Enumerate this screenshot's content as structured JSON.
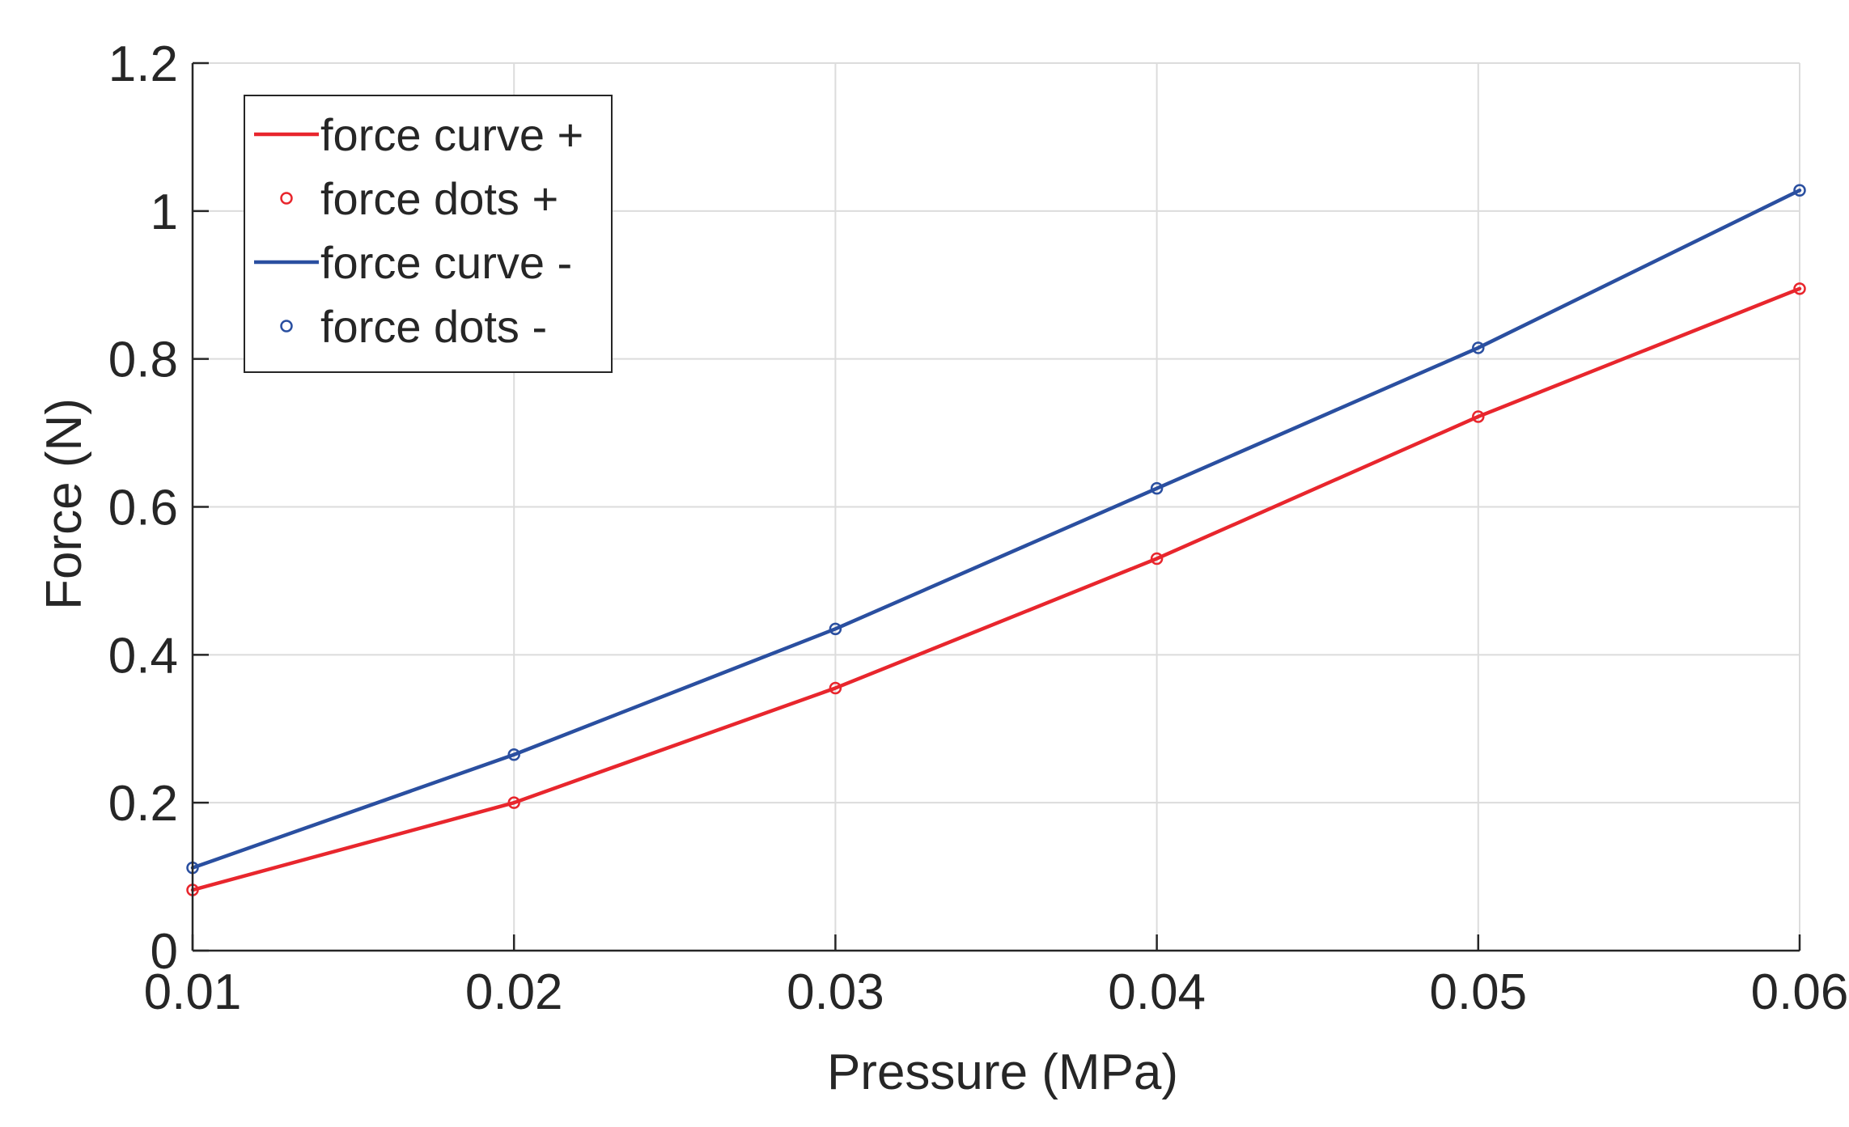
{
  "chart_data": {
    "type": "line",
    "title": "",
    "xlabel": "Pressure (MPa)",
    "ylabel": "Force (N)",
    "xlim": [
      0.01,
      0.06
    ],
    "ylim": [
      0,
      1.2
    ],
    "grid": true,
    "xticks": [
      0.01,
      0.02,
      0.03,
      0.04,
      0.05,
      0.06
    ],
    "yticks": [
      0,
      0.2,
      0.4,
      0.6,
      0.8,
      1,
      1.2
    ],
    "xtick_labels": [
      "0.01",
      "0.02",
      "0.03",
      "0.04",
      "0.05",
      "0.06"
    ],
    "ytick_labels": [
      "0",
      "0.2",
      "0.4",
      "0.6",
      "0.8",
      "1",
      "1.2"
    ],
    "legend_position": "top-left",
    "x": [
      0.01,
      0.02,
      0.03,
      0.04,
      0.05,
      0.06
    ],
    "series": [
      {
        "name": "force curve +",
        "kind": "line",
        "color": "#e8262d",
        "values": [
          0.082,
          0.2,
          0.355,
          0.53,
          0.722,
          0.895
        ]
      },
      {
        "name": "force dots +",
        "kind": "markers",
        "color": "#e8262d",
        "values": [
          0.082,
          0.2,
          0.355,
          0.53,
          0.722,
          0.895
        ]
      },
      {
        "name": "force curve -",
        "kind": "line",
        "color": "#2a4fa0",
        "values": [
          0.112,
          0.265,
          0.435,
          0.625,
          0.815,
          1.028
        ]
      },
      {
        "name": "force dots -",
        "kind": "markers",
        "color": "#2a4fa0",
        "values": [
          0.112,
          0.265,
          0.435,
          0.625,
          0.815,
          1.028
        ]
      }
    ]
  }
}
